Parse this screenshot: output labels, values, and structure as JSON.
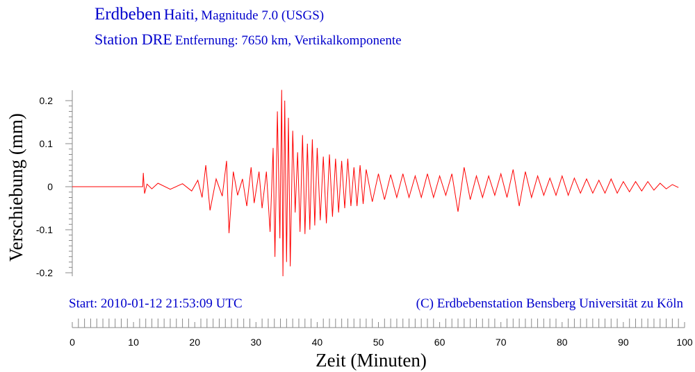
{
  "header": {
    "title_main": "Erdbeben",
    "title_place": "Haiti,",
    "title_magnitude": "Magnitude 7.0 (USGS)",
    "station_main": "Station DRE",
    "station_detail": "Entfernung: 7650 km, Vertikalkomponente"
  },
  "footer": {
    "start": "Start: 2010-01-12  21:53:09 UTC",
    "copyright": "(C) Erdbebenstation Bensberg Universität zu Köln"
  },
  "colors": {
    "trace": "#ff0000",
    "text": "#0000cc",
    "axis": "#888888"
  },
  "chart_data": {
    "type": "line",
    "xlabel": "Zeit (Minuten)",
    "ylabel": "Verschiebung (mm)",
    "xlim": [
      0,
      100
    ],
    "ylim": [
      -0.2,
      0.2
    ],
    "xticks": [
      0,
      10,
      20,
      30,
      40,
      50,
      60,
      70,
      80,
      90,
      100
    ],
    "xtick_labels": [
      "0",
      "10",
      "20",
      "30",
      "40",
      "50",
      "60",
      "70",
      "80",
      "90",
      "100"
    ],
    "yticks": [
      0.2,
      0.1,
      0,
      -0.1,
      -0.2
    ],
    "ytick_labels": [
      "0.2",
      "0.1",
      "0",
      "-0.1",
      "-0.2"
    ],
    "grid": false,
    "series": [
      {
        "x": [
          0,
          11.5,
          11.6,
          11.8,
          12.2,
          13,
          14,
          16,
          18,
          19.5,
          20.5,
          21.2,
          21.8,
          22.5,
          23.5,
          24.5,
          25.2,
          25.6,
          26.3,
          27,
          27.8,
          28.5,
          29.2,
          29.7,
          30.5,
          31,
          31.7,
          32.3,
          32.8,
          33.1,
          33.5,
          33.9,
          34.2,
          34.4,
          34.7,
          35.0,
          35.3,
          35.6,
          36.0,
          36.4,
          36.8,
          37.2,
          37.6,
          38.0,
          38.4,
          38.8,
          39.2,
          39.6,
          40.0,
          40.5,
          41,
          41.5,
          42,
          42.5,
          43,
          43.5,
          44,
          44.5,
          45,
          45.5,
          46,
          46.5,
          47,
          47.5,
          48,
          49,
          50,
          51,
          52,
          53,
          54,
          55,
          56,
          57,
          58,
          59,
          60,
          61,
          62,
          63,
          64,
          65,
          66,
          67,
          68,
          69,
          70,
          71,
          72,
          73,
          74,
          75,
          76,
          77,
          78,
          79,
          80,
          81,
          82,
          83,
          84,
          85,
          86,
          87,
          88,
          89,
          90,
          91,
          92,
          93,
          94,
          95,
          96,
          97,
          98,
          99
        ],
        "y": [
          0,
          0,
          0.032,
          -0.016,
          0.006,
          -0.005,
          0.008,
          -0.006,
          0.007,
          -0.01,
          0.015,
          -0.025,
          0.05,
          -0.055,
          0.018,
          -0.022,
          0.06,
          -0.108,
          0.035,
          -0.02,
          0.018,
          -0.045,
          0.045,
          -0.038,
          0.035,
          -0.05,
          0.035,
          -0.105,
          0.09,
          -0.163,
          0.175,
          -0.12,
          0.225,
          -0.208,
          0.2,
          -0.175,
          0.16,
          -0.185,
          0.13,
          -0.06,
          0.08,
          -0.105,
          0.12,
          -0.11,
          0.1,
          -0.1,
          0.11,
          -0.09,
          0.09,
          -0.078,
          0.07,
          -0.085,
          0.075,
          -0.07,
          0.065,
          -0.06,
          0.06,
          -0.05,
          0.065,
          -0.045,
          0.045,
          -0.045,
          0.05,
          -0.04,
          0.04,
          -0.035,
          0.03,
          -0.03,
          0.028,
          -0.025,
          0.03,
          -0.025,
          0.025,
          -0.025,
          0.03,
          -0.025,
          0.025,
          -0.02,
          0.03,
          -0.058,
          0.045,
          -0.03,
          0.025,
          -0.025,
          0.025,
          -0.02,
          0.03,
          -0.025,
          0.04,
          -0.045,
          0.035,
          -0.025,
          0.025,
          -0.02,
          0.02,
          -0.02,
          0.025,
          -0.02,
          0.02,
          -0.015,
          0.018,
          -0.015,
          0.015,
          -0.015,
          0.018,
          -0.015,
          0.012,
          -0.012,
          0.012,
          -0.01,
          0.012,
          -0.008,
          0.008,
          -0.005,
          0.005,
          -0.002
        ]
      }
    ]
  }
}
